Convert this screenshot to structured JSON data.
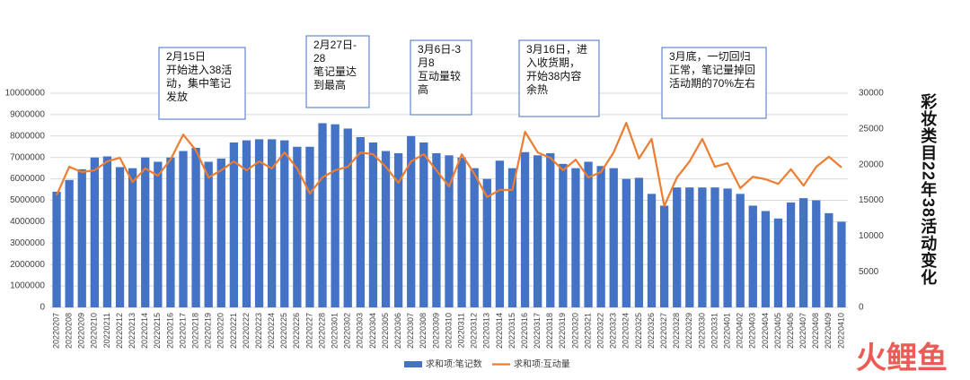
{
  "chart_data": {
    "type": "bar_line",
    "title": "彩妆类目22年38活动变化",
    "categories": [
      "20220207",
      "20220208",
      "20220209",
      "20220210",
      "20220211",
      "20220212",
      "20220213",
      "20220214",
      "20220215",
      "20220216",
      "20220217",
      "20220218",
      "20220219",
      "20220220",
      "20220221",
      "20220222",
      "20220223",
      "20220224",
      "20220225",
      "20220226",
      "20220227",
      "20220228",
      "20220301",
      "20220302",
      "20220303",
      "20220304",
      "20220305",
      "20220306",
      "20220307",
      "20220308",
      "20220309",
      "20220310",
      "20220311",
      "20220312",
      "20220313",
      "20220314",
      "20220315",
      "20220316",
      "20220317",
      "20220318",
      "20220319",
      "20220320",
      "20220321",
      "20220322",
      "20220323",
      "20220324",
      "20220325",
      "20220326",
      "20220327",
      "20220328",
      "20220329",
      "20220330",
      "20220331",
      "20220401",
      "20220402",
      "20220403",
      "20220404",
      "20220405",
      "20220406",
      "20220407",
      "20220408",
      "20220409",
      "20220410"
    ],
    "series": [
      {
        "name": "求和项:笔记数",
        "color": "#4472c4",
        "kind": "bar",
        "axis": "y",
        "values": [
          5400000,
          5950000,
          6450000,
          7000000,
          7050000,
          6550000,
          6500000,
          7000000,
          6800000,
          7000000,
          7300000,
          7450000,
          6800000,
          6950000,
          7700000,
          7800000,
          7850000,
          7850000,
          7800000,
          7500000,
          7500000,
          8600000,
          8550000,
          8350000,
          7950000,
          7700000,
          7300000,
          7200000,
          8000000,
          7700000,
          7200000,
          7100000,
          7000000,
          6500000,
          6000000,
          6850000,
          6500000,
          7250000,
          7100000,
          7200000,
          6700000,
          6500000,
          6800000,
          6600000,
          6500000,
          6000000,
          6050000,
          5300000,
          4750000,
          5600000,
          5600000,
          5600000,
          5600000,
          5550000,
          5300000,
          4750000,
          4500000,
          4150000,
          4900000,
          5100000,
          5000000,
          4400000,
          4000000
        ]
      },
      {
        "name": "求和项:互动量",
        "color": "#ed7d31",
        "kind": "line",
        "axis": "y2",
        "values": [
          15700,
          19700,
          18950,
          19200,
          20450,
          20950,
          17550,
          19450,
          18450,
          20700,
          24200,
          22000,
          18200,
          19200,
          20450,
          19200,
          20450,
          19450,
          21700,
          19450,
          15950,
          18200,
          19200,
          19700,
          21700,
          21450,
          19700,
          17450,
          20450,
          21450,
          19200,
          16950,
          21450,
          18700,
          15450,
          16450,
          16450,
          24600,
          21700,
          20950,
          19200,
          20700,
          18200,
          18950,
          21700,
          25850,
          20850,
          23600,
          14200,
          18200,
          20450,
          23600,
          19700,
          20200,
          16700,
          18300,
          17950,
          17300,
          19350,
          17050,
          19700,
          21100,
          19600
        ]
      }
    ],
    "ylim": [
      0,
      10000000
    ],
    "yticks": [
      0,
      1000000,
      2000000,
      3000000,
      4000000,
      5000000,
      6000000,
      7000000,
      8000000,
      9000000,
      10000000
    ],
    "y2lim": [
      0,
      30000
    ],
    "y2ticks": [
      0,
      5000,
      10000,
      15000,
      20000,
      25000,
      30000
    ],
    "annotations": [
      {
        "lines": [
          "2月15日",
          "开始进入38活",
          "动，集中笔记",
          "发放"
        ]
      },
      {
        "lines": [
          "2月27日-",
          "28",
          "笔记量达",
          "到最高"
        ]
      },
      {
        "lines": [
          "3月6日-3",
          "月8",
          "互动量较",
          "高"
        ]
      },
      {
        "lines": [
          "3月16日，进",
          "入收货期，",
          "开始38内容",
          "余热"
        ]
      },
      {
        "lines": [
          "3月底，一切回归",
          "正常，笔记量掉回",
          "活动期的70%左右"
        ]
      }
    ],
    "watermark": "火鲤鱼"
  }
}
